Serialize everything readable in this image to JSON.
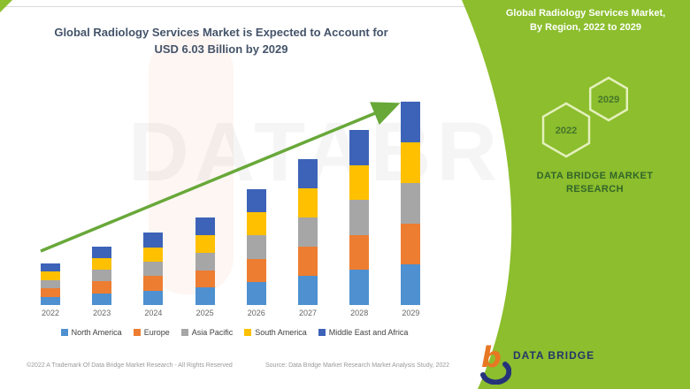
{
  "header": {
    "title_line1": "Global Radiology Services Market is Expected to Account for",
    "title_line2": "USD 6.03 Billion by 2029"
  },
  "side_panel": {
    "panel_color": "#8CBE2D",
    "heading_line1": "Global Radiology Services Market,",
    "heading_line2": "By Region, 2022 to 2029",
    "hexagons": [
      {
        "label": "2022"
      },
      {
        "label": "2029"
      }
    ],
    "brand_caption_line1": "DATA BRIDGE MARKET",
    "brand_caption_line2": "RESEARCH",
    "logo_text": "DATA BRIDGE"
  },
  "chart_data": {
    "type": "bar",
    "stacked": true,
    "title": "Global Radiology Services Market is Expected to Account for USD 6.03 Billion by 2029",
    "xlabel": "",
    "ylabel": "",
    "y_unit": "USD Billion",
    "axes_hidden": true,
    "grid": false,
    "legend_position": "bottom",
    "categories": [
      "2022",
      "2023",
      "2024",
      "2025",
      "2026",
      "2027",
      "2028",
      "2029"
    ],
    "totals_usd_billion": [
      1.26,
      1.74,
      2.13,
      2.58,
      3.47,
      4.34,
      5.19,
      6.03
    ],
    "highlight_value": "USD 6.03 Billion by 2029",
    "trend_arrow": "up",
    "series": [
      {
        "name": "North America",
        "color": "#4E90D0",
        "values": [
          0.25,
          0.35,
          0.43,
          0.52,
          0.69,
          0.87,
          1.04,
          1.21
        ]
      },
      {
        "name": "Europe",
        "color": "#ED7D31",
        "values": [
          0.25,
          0.35,
          0.43,
          0.52,
          0.69,
          0.87,
          1.04,
          1.21
        ]
      },
      {
        "name": "Asia Pacific",
        "color": "#A6A6A6",
        "values": [
          0.25,
          0.35,
          0.43,
          0.52,
          0.69,
          0.87,
          1.04,
          1.21
        ]
      },
      {
        "name": "South America",
        "color": "#FFC000",
        "values": [
          0.25,
          0.35,
          0.43,
          0.52,
          0.69,
          0.87,
          1.04,
          1.21
        ]
      },
      {
        "name": "Middle East and Africa",
        "color": "#3D63B8",
        "values": [
          0.25,
          0.35,
          0.43,
          0.52,
          0.69,
          0.87,
          1.04,
          1.21
        ]
      }
    ],
    "watermark": "DATABRIDGE"
  },
  "footer": {
    "left_text": "©2022 A Trademark Of Data Bridge Market Research - All Rights Reserved",
    "right_text": "Source: Data Bridge Market Research Market Analysis Study, 2022"
  }
}
